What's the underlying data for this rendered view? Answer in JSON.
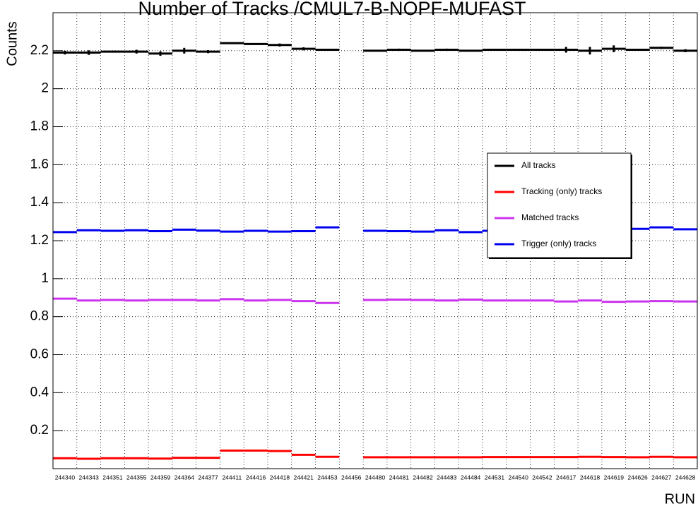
{
  "chart_data": {
    "type": "histogram-category",
    "title": "Number of Tracks /CMUL7-B-NOPF-MUFAST",
    "y_label": "Counts",
    "x_label": "RUN",
    "categories": [
      "244340",
      "244343",
      "244351",
      "244355",
      "244359",
      "244364",
      "244377",
      "244411",
      "244416",
      "244418",
      "244421",
      "244453",
      "244456",
      "244480",
      "244481",
      "244482",
      "244483",
      "244484",
      "244531",
      "244540",
      "244542",
      "244617",
      "244618",
      "244619",
      "244626",
      "244627",
      "244628"
    ],
    "ylim": [
      0,
      2.4
    ],
    "yticks": [
      0.2,
      0.4,
      0.6,
      0.8,
      1,
      1.2,
      1.4,
      1.6,
      1.8,
      2,
      2.2
    ],
    "grid": true,
    "legend": "right",
    "series": [
      {
        "name": "All tracks",
        "color": "#000000",
        "values": [
          2.19,
          2.19,
          2.195,
          2.195,
          2.185,
          2.2,
          2.195,
          2.24,
          2.235,
          2.23,
          2.21,
          2.205,
          null,
          2.2,
          2.205,
          2.2,
          2.205,
          2.2,
          2.205,
          2.205,
          2.205,
          2.205,
          2.2,
          2.21,
          2.205,
          2.215,
          2.2
        ],
        "errors": [
          0.01,
          0.012,
          0.005,
          0.01,
          0.012,
          0.015,
          0.008,
          0.004,
          0.004,
          0.008,
          0.008,
          0.005,
          null,
          0.004,
          0.006,
          0.004,
          0.006,
          0.004,
          0.004,
          0.004,
          0.004,
          0.015,
          0.02,
          0.018,
          0.005,
          0.006,
          0.008
        ]
      },
      {
        "name": "Tracking (only) tracks",
        "color": "#ff0000",
        "values": [
          0.055,
          0.052,
          0.055,
          0.055,
          0.053,
          0.057,
          0.057,
          0.095,
          0.095,
          0.093,
          0.073,
          0.062,
          null,
          0.06,
          0.06,
          0.06,
          0.06,
          0.06,
          0.061,
          0.061,
          0.061,
          0.061,
          0.062,
          0.061,
          0.06,
          0.062,
          0.06
        ]
      },
      {
        "name": "Matched tracks",
        "color": "#cc33ee",
        "values": [
          0.895,
          0.885,
          0.888,
          0.885,
          0.888,
          0.888,
          0.885,
          0.892,
          0.885,
          0.888,
          0.882,
          0.872,
          null,
          0.888,
          0.89,
          0.888,
          0.885,
          0.89,
          0.885,
          0.885,
          0.885,
          0.88,
          0.885,
          0.878,
          0.88,
          0.882,
          0.88
        ]
      },
      {
        "name": "Trigger (only) tracks",
        "color": "#0000ee",
        "values": [
          1.245,
          1.255,
          1.252,
          1.255,
          1.25,
          1.258,
          1.253,
          1.248,
          1.252,
          1.248,
          1.25,
          1.27,
          null,
          1.252,
          1.25,
          1.248,
          1.255,
          1.245,
          1.252,
          1.255,
          1.255,
          1.252,
          1.255,
          1.258,
          1.262,
          1.27,
          1.26
        ]
      }
    ]
  }
}
